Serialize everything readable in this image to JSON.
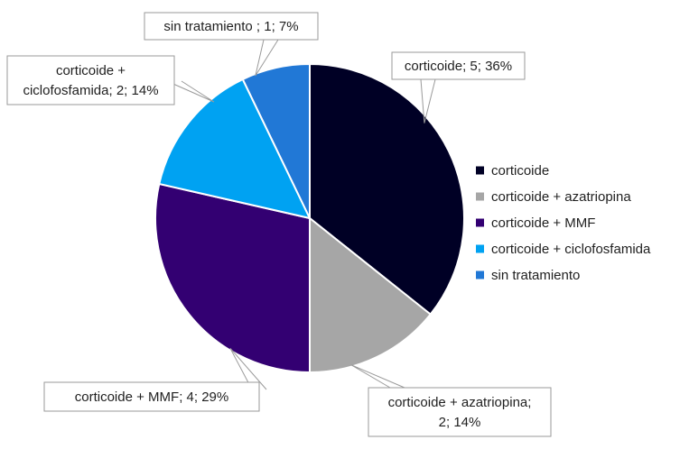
{
  "chart_data": {
    "type": "pie",
    "title": "",
    "slices": [
      {
        "name": "corticoide",
        "value": 5,
        "percent": 36,
        "color": "#000025",
        "label_lines": [
          "corticoide; 5; 36%"
        ]
      },
      {
        "name": "corticoide + azatriopina",
        "value": 2,
        "percent": 14,
        "color": "#a6a6a6",
        "label_lines": [
          "corticoide + azatriopina;",
          "2; 14%"
        ]
      },
      {
        "name": "corticoide + MMF",
        "value": 4,
        "percent": 29,
        "color": "#330072",
        "label_lines": [
          "corticoide + MMF; 4; 29%"
        ]
      },
      {
        "name": "corticoide + ciclofosfamida",
        "value": 2,
        "percent": 14,
        "color": "#00a2f2",
        "label_lines": [
          "corticoide +",
          "ciclofosfamida; 2; 14%"
        ]
      },
      {
        "name": "sin tratamiento",
        "value": 1,
        "percent": 7,
        "color": "#2178d6",
        "label_lines": [
          "sin tratamiento ; 1; 7%"
        ]
      }
    ],
    "legend_position": "right"
  }
}
